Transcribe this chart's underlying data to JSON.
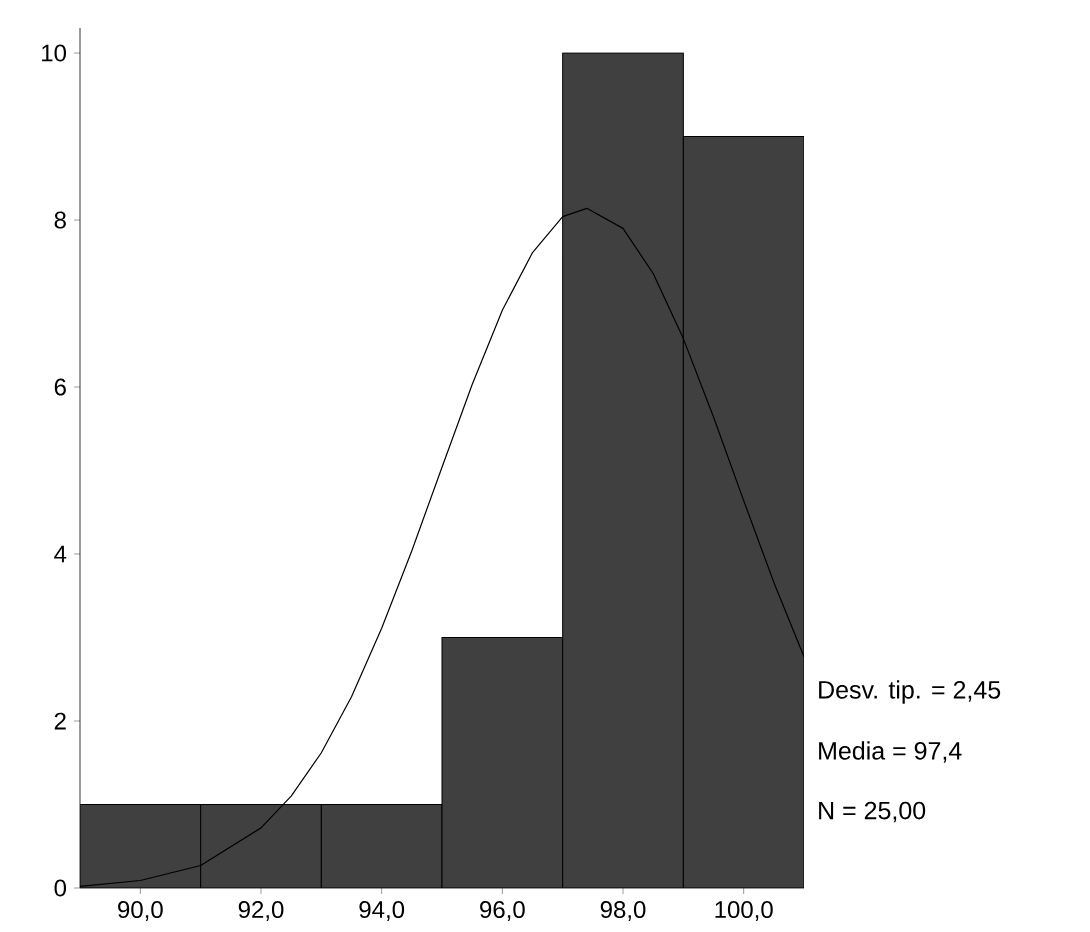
{
  "chart_data": {
    "type": "histogram",
    "bins": [
      89,
      91,
      93,
      95,
      97,
      99,
      101
    ],
    "values": [
      1,
      1,
      1,
      3,
      10,
      9
    ],
    "color": "#404040",
    "xlim": [
      89,
      101
    ],
    "ylim": [
      0,
      10.3
    ],
    "xticks": [
      {
        "value": 90,
        "label": "90,0"
      },
      {
        "value": 92,
        "label": "92,0"
      },
      {
        "value": 94,
        "label": "94,0"
      },
      {
        "value": 96,
        "label": "96,0"
      },
      {
        "value": 98,
        "label": "98,0"
      },
      {
        "value": 100,
        "label": "100,0"
      }
    ],
    "yticks": [
      0,
      2,
      4,
      6,
      8,
      10
    ],
    "series": [
      {
        "type": "line",
        "color": "#000000",
        "x": [
          89,
          90,
          91,
          92,
          92.5,
          93,
          93.5,
          94,
          94.5,
          95,
          95.5,
          96,
          96.5,
          97,
          97.4,
          98,
          98.5,
          99,
          99.5,
          100,
          100.5,
          101
        ],
        "values": [
          0.02,
          0.09,
          0.27,
          0.72,
          1.1,
          1.62,
          2.29,
          3.11,
          4.04,
          5.04,
          6.03,
          6.92,
          7.61,
          8.04,
          8.14,
          7.9,
          7.36,
          6.58,
          5.64,
          4.64,
          3.66,
          2.77
        ]
      }
    ],
    "annotations": [
      "Desv. tip. = 2,45",
      "Media = 97,4",
      "N = 25,00"
    ]
  }
}
